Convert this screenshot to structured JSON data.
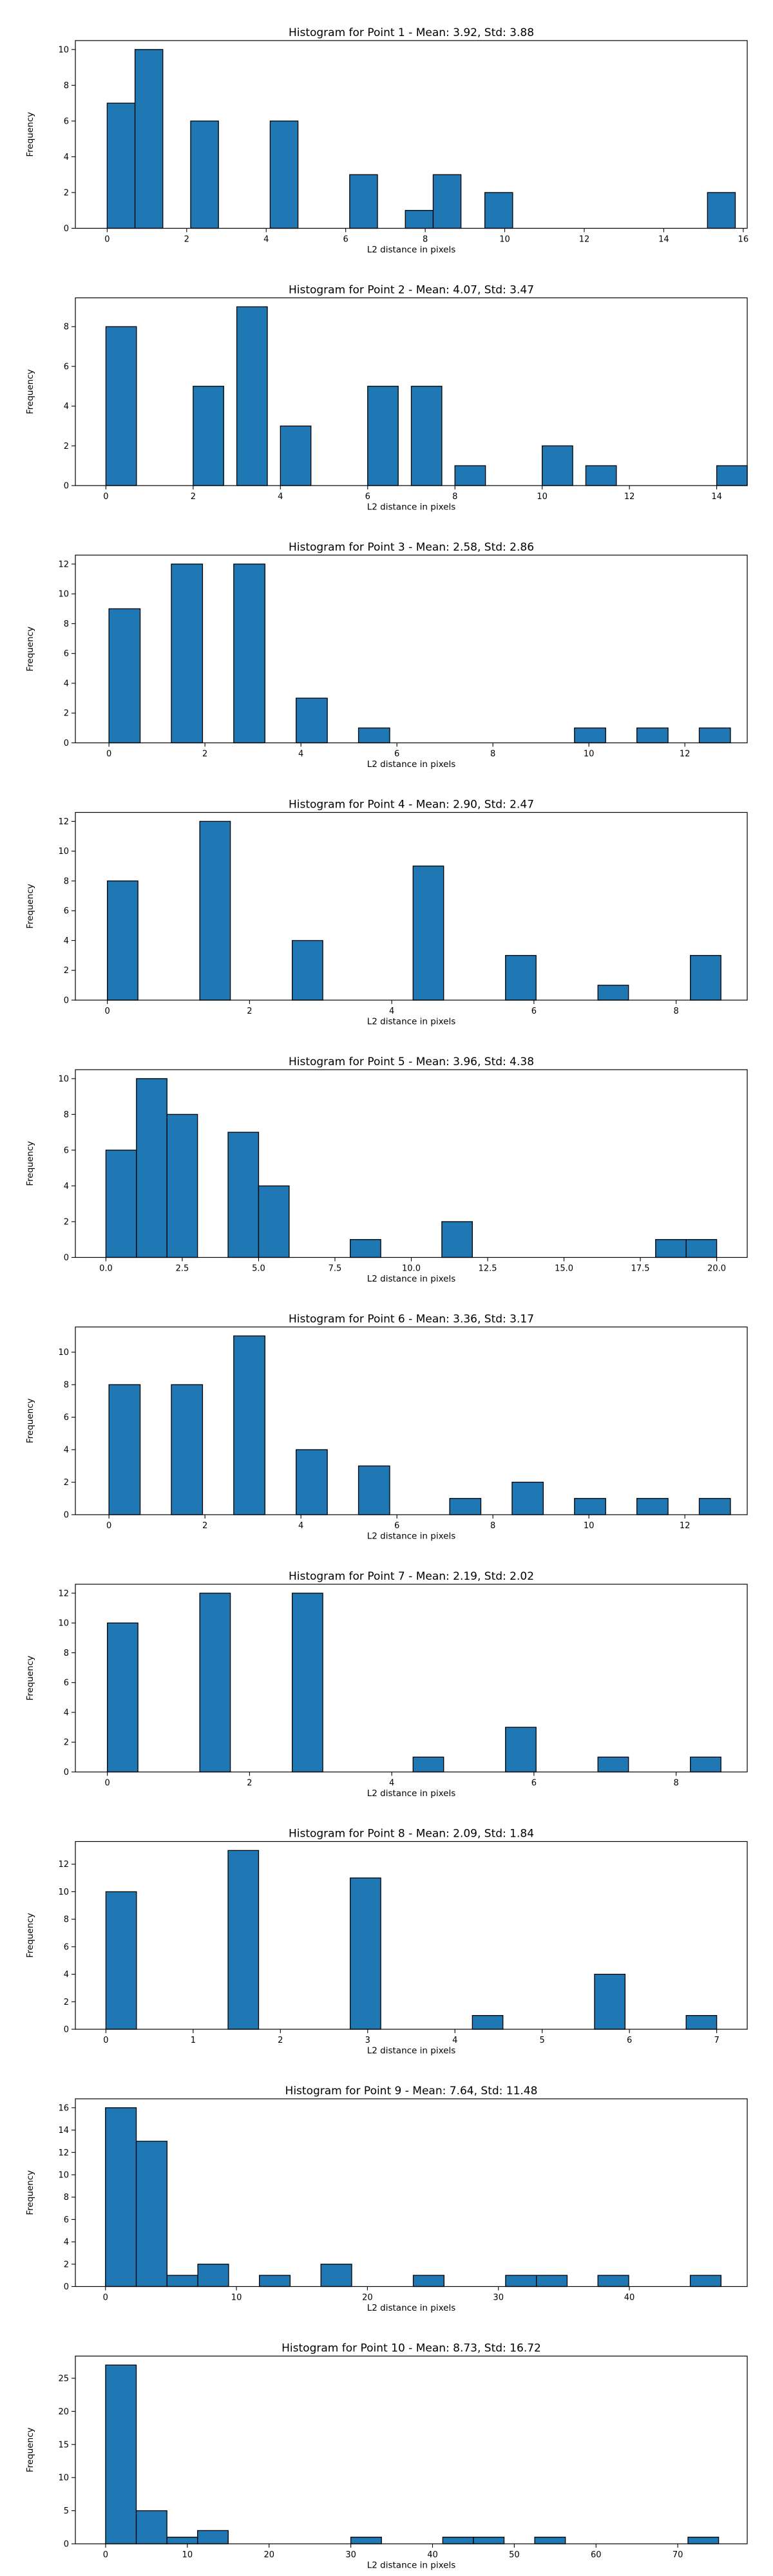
{
  "chart_data": [
    {
      "type": "bar",
      "title": "Histogram for Point 1 - Mean: 3.92, Std: 3.88",
      "xlabel": "L2 distance in pixels",
      "ylabel": "Frequency",
      "xlim": [
        -0.8,
        16.1
      ],
      "ylim": [
        0,
        10.5
      ],
      "xticks": [
        0,
        2,
        4,
        6,
        8,
        10,
        12,
        14,
        16
      ],
      "xtick_labels": [
        "0",
        "2",
        "4",
        "6",
        "8",
        "10",
        "12",
        "14",
        "16"
      ],
      "yticks": [
        0,
        2,
        4,
        6,
        8,
        10
      ],
      "ytick_labels": [
        "0",
        "2",
        "4",
        "6",
        "8",
        "10"
      ],
      "bin_width": 0.7,
      "bins": [
        [
          0,
          7
        ],
        [
          0.7,
          10
        ],
        [
          2.1,
          6
        ],
        [
          4.1,
          6
        ],
        [
          6.1,
          3
        ],
        [
          7.5,
          1
        ],
        [
          8.2,
          3
        ],
        [
          9.5,
          2
        ],
        [
          15.1,
          2
        ]
      ]
    },
    {
      "type": "bar",
      "title": "Histogram for Point 2 - Mean: 4.07, Std: 3.47",
      "xlabel": "L2 distance in pixels",
      "ylabel": "Frequency",
      "xlim": [
        -0.7,
        14.7
      ],
      "ylim": [
        0,
        9.45
      ],
      "xticks": [
        0,
        2,
        4,
        6,
        8,
        10,
        12,
        14
      ],
      "xtick_labels": [
        "0",
        "2",
        "4",
        "6",
        "8",
        "10",
        "12",
        "14"
      ],
      "yticks": [
        0,
        2,
        4,
        6,
        8
      ],
      "ytick_labels": [
        "0",
        "2",
        "4",
        "6",
        "8"
      ],
      "bin_width": 0.7,
      "bins": [
        [
          0,
          8
        ],
        [
          2,
          5
        ],
        [
          3,
          9
        ],
        [
          4,
          3
        ],
        [
          6,
          5
        ],
        [
          7,
          5
        ],
        [
          8,
          1
        ],
        [
          10,
          2
        ],
        [
          11,
          1
        ],
        [
          14,
          1
        ]
      ]
    },
    {
      "type": "bar",
      "title": "Histogram for Point 3 - Mean: 2.58, Std: 2.86",
      "xlabel": "L2 distance in pixels",
      "ylabel": "Frequency",
      "xlim": [
        -0.7,
        13.3
      ],
      "ylim": [
        0,
        12.6
      ],
      "xticks": [
        0,
        2,
        4,
        6,
        8,
        10,
        12
      ],
      "xtick_labels": [
        "0",
        "2",
        "4",
        "6",
        "8",
        "10",
        "12"
      ],
      "yticks": [
        0,
        2,
        4,
        6,
        8,
        10,
        12
      ],
      "ytick_labels": [
        "0",
        "2",
        "4",
        "6",
        "8",
        "10",
        "12"
      ],
      "bin_width": 0.65,
      "bins": [
        [
          0,
          9
        ],
        [
          1.3,
          12
        ],
        [
          2.6,
          12
        ],
        [
          3.9,
          3
        ],
        [
          5.2,
          1
        ],
        [
          9.7,
          1
        ],
        [
          11,
          1
        ],
        [
          12.3,
          1
        ]
      ]
    },
    {
      "type": "bar",
      "title": "Histogram for Point 4 - Mean: 2.90, Std: 2.47",
      "xlabel": "L2 distance in pixels",
      "ylabel": "Frequency",
      "xlim": [
        -0.45,
        9
      ],
      "ylim": [
        0,
        12.6
      ],
      "xticks": [
        0,
        2,
        4,
        6,
        8
      ],
      "xtick_labels": [
        "0",
        "2",
        "4",
        "6",
        "8"
      ],
      "yticks": [
        0,
        2,
        4,
        6,
        8,
        10,
        12
      ],
      "ytick_labels": [
        "0",
        "2",
        "4",
        "6",
        "8",
        "10",
        "12"
      ],
      "bin_width": 0.43,
      "bins": [
        [
          0,
          8
        ],
        [
          1.3,
          12
        ],
        [
          2.6,
          4
        ],
        [
          4.3,
          9
        ],
        [
          5.6,
          3
        ],
        [
          6.9,
          1
        ],
        [
          8.2,
          3
        ]
      ]
    },
    {
      "type": "bar",
      "title": "Histogram for Point 5 - Mean: 3.96, Std: 4.38",
      "xlabel": "L2 distance in pixels",
      "ylabel": "Frequency",
      "xlim": [
        -1,
        21
      ],
      "ylim": [
        0,
        10.5
      ],
      "xticks": [
        0,
        2.5,
        5,
        7.5,
        10,
        12.5,
        15,
        17.5,
        20
      ],
      "xtick_labels": [
        "0.0",
        "2.5",
        "5.0",
        "7.5",
        "10.0",
        "12.5",
        "15.0",
        "17.5",
        "20.0"
      ],
      "yticks": [
        0,
        2,
        4,
        6,
        8,
        10
      ],
      "ytick_labels": [
        "0",
        "2",
        "4",
        "6",
        "8",
        "10"
      ],
      "bin_width": 1,
      "bins": [
        [
          0,
          6
        ],
        [
          1,
          10
        ],
        [
          2,
          8
        ],
        [
          4,
          7
        ],
        [
          5,
          4
        ],
        [
          8,
          1
        ],
        [
          11,
          2
        ],
        [
          18,
          1
        ],
        [
          19,
          1
        ]
      ]
    },
    {
      "type": "bar",
      "title": "Histogram for Point 6 - Mean: 3.36, Std: 3.17",
      "xlabel": "L2 distance in pixels",
      "ylabel": "Frequency",
      "xlim": [
        -0.7,
        13.3
      ],
      "ylim": [
        0,
        11.55
      ],
      "xticks": [
        0,
        2,
        4,
        6,
        8,
        10,
        12
      ],
      "xtick_labels": [
        "0",
        "2",
        "4",
        "6",
        "8",
        "10",
        "12"
      ],
      "yticks": [
        0,
        2,
        4,
        6,
        8,
        10
      ],
      "ytick_labels": [
        "0",
        "2",
        "4",
        "6",
        "8",
        "10"
      ],
      "bin_width": 0.65,
      "bins": [
        [
          0,
          8
        ],
        [
          1.3,
          8
        ],
        [
          2.6,
          11
        ],
        [
          3.9,
          4
        ],
        [
          5.2,
          3
        ],
        [
          7.1,
          1
        ],
        [
          8.4,
          2
        ],
        [
          9.7,
          1
        ],
        [
          11,
          1
        ],
        [
          12.3,
          1
        ]
      ]
    },
    {
      "type": "bar",
      "title": "Histogram for Point 7 - Mean: 2.19, Std: 2.02",
      "xlabel": "L2 distance in pixels",
      "ylabel": "Frequency",
      "xlim": [
        -0.45,
        9
      ],
      "ylim": [
        0,
        12.6
      ],
      "xticks": [
        0,
        2,
        4,
        6,
        8
      ],
      "xtick_labels": [
        "0",
        "2",
        "4",
        "6",
        "8"
      ],
      "yticks": [
        0,
        2,
        4,
        6,
        8,
        10,
        12
      ],
      "ytick_labels": [
        "0",
        "2",
        "4",
        "6",
        "8",
        "10",
        "12"
      ],
      "bin_width": 0.43,
      "bins": [
        [
          0,
          10
        ],
        [
          1.3,
          12
        ],
        [
          2.6,
          12
        ],
        [
          4.3,
          1
        ],
        [
          5.6,
          3
        ],
        [
          6.9,
          1
        ],
        [
          8.2,
          1
        ]
      ]
    },
    {
      "type": "bar",
      "title": "Histogram for Point 8 - Mean: 2.09, Std: 1.84",
      "xlabel": "L2 distance in pixels",
      "ylabel": "Frequency",
      "xlim": [
        -0.35,
        7.35
      ],
      "ylim": [
        0,
        13.65
      ],
      "xticks": [
        0,
        1,
        2,
        3,
        4,
        5,
        6,
        7
      ],
      "xtick_labels": [
        "0",
        "1",
        "2",
        "3",
        "4",
        "5",
        "6",
        "7"
      ],
      "yticks": [
        0,
        2,
        4,
        6,
        8,
        10,
        12
      ],
      "ytick_labels": [
        "0",
        "2",
        "4",
        "6",
        "8",
        "10",
        "12"
      ],
      "bin_width": 0.35,
      "bins": [
        [
          0,
          10
        ],
        [
          1.4,
          13
        ],
        [
          2.8,
          11
        ],
        [
          4.2,
          1
        ],
        [
          5.6,
          4
        ],
        [
          6.65,
          1
        ]
      ]
    },
    {
      "type": "bar",
      "title": "Histogram for Point 9 - Mean: 7.64, Std: 11.48",
      "xlabel": "L2 distance in pixels",
      "ylabel": "Frequency",
      "xlim": [
        -2.3,
        49
      ],
      "ylim": [
        0,
        16.8
      ],
      "xticks": [
        0,
        10,
        20,
        30,
        40
      ],
      "xtick_labels": [
        "0",
        "10",
        "20",
        "30",
        "40"
      ],
      "yticks": [
        0,
        2,
        4,
        6,
        8,
        10,
        12,
        14,
        16
      ],
      "ytick_labels": [
        "0",
        "2",
        "4",
        "6",
        "8",
        "10",
        "12",
        "14",
        "16"
      ],
      "bin_width": 2.35,
      "bins": [
        [
          0,
          16
        ],
        [
          2.35,
          13
        ],
        [
          4.7,
          1
        ],
        [
          7.05,
          2
        ],
        [
          11.75,
          1
        ],
        [
          16.45,
          2
        ],
        [
          23.5,
          1
        ],
        [
          30.55,
          1
        ],
        [
          32.9,
          1
        ],
        [
          37.6,
          1
        ],
        [
          44.65,
          1
        ]
      ]
    },
    {
      "type": "bar",
      "title": "Histogram for Point 10 - Mean: 8.73, Std: 16.72",
      "xlabel": "L2 distance in pixels",
      "ylabel": "Frequency",
      "xlim": [
        -3.7,
        78.5
      ],
      "ylim": [
        0,
        28.35
      ],
      "xticks": [
        0,
        10,
        20,
        30,
        40,
        50,
        60,
        70
      ],
      "xtick_labels": [
        "0",
        "10",
        "20",
        "30",
        "40",
        "50",
        "60",
        "70"
      ],
      "yticks": [
        0,
        5,
        10,
        15,
        20,
        25
      ],
      "ytick_labels": [
        "0",
        "5",
        "10",
        "15",
        "20",
        "25"
      ],
      "bin_width": 3.75,
      "bins": [
        [
          0,
          27
        ],
        [
          3.75,
          5
        ],
        [
          7.5,
          1
        ],
        [
          11.25,
          2
        ],
        [
          30,
          1
        ],
        [
          41.25,
          1
        ],
        [
          45,
          1
        ],
        [
          52.5,
          1
        ],
        [
          71.25,
          1
        ]
      ]
    }
  ]
}
